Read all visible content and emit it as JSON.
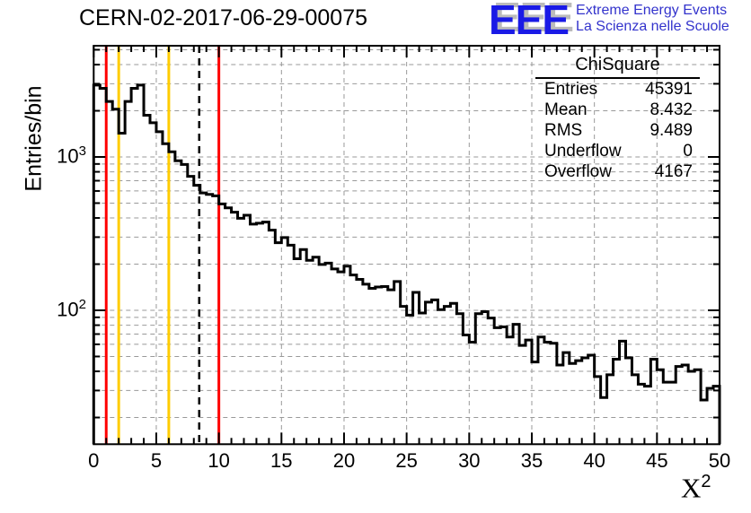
{
  "page": {
    "background": "#ffffff"
  },
  "header": {
    "title": "CERN-02-2017-06-29-00075",
    "logo": {
      "acronym": "EEE",
      "line1": "Extreme Energy Events",
      "line2": "La Scienza nelle Scuole",
      "acronym_color": "#1a1ae6",
      "shadow_color": "#bbbbbb",
      "text_color": "#3333cc"
    }
  },
  "axis": {
    "x_label_base": "X",
    "x_label_exp": "2",
    "y_label": "Entries/bin"
  },
  "stats_box": {
    "title": "ChiSquare",
    "rows": [
      {
        "label": "Entries",
        "value": "45391"
      },
      {
        "label": "Mean",
        "value": "8.432"
      },
      {
        "label": "RMS",
        "value": "9.489"
      },
      {
        "label": "Underflow",
        "value": "0"
      },
      {
        "label": "Overflow",
        "value": "4167"
      }
    ]
  },
  "chart_data": {
    "type": "bar",
    "subtype": "step-histogram-outline",
    "title": "CERN-02-2017-06-29-00075",
    "xlabel": "X^2",
    "ylabel": "Entries/bin",
    "log_y": true,
    "grid": true,
    "xlim": [
      0,
      50
    ],
    "ylim": [
      13.5,
      5310
    ],
    "bin_start": 0,
    "bin_width": 0.5,
    "counts": [
      2940,
      2800,
      2300,
      2050,
      1430,
      2300,
      2800,
      2940,
      1870,
      1670,
      1460,
      1220,
      1080,
      944,
      894,
      747,
      653,
      583,
      570,
      558,
      494,
      466,
      436,
      398,
      417,
      365,
      370,
      376,
      333,
      276,
      298,
      266,
      217,
      249,
      212,
      222,
      199,
      203,
      186,
      178,
      194,
      170,
      159,
      148,
      139,
      142,
      143,
      136,
      154,
      106,
      93,
      131,
      96,
      113,
      117,
      101,
      106,
      111,
      95,
      69,
      62,
      95,
      98,
      89,
      77,
      78,
      67,
      81,
      59,
      64,
      46,
      67,
      62,
      61,
      44,
      53,
      45,
      47,
      49,
      51,
      37,
      27,
      38,
      48,
      63,
      49,
      38,
      33,
      32,
      48,
      41,
      34,
      34,
      43,
      44,
      40,
      41,
      26,
      31,
      32
    ],
    "x_ticks": [
      0,
      5,
      10,
      15,
      20,
      25,
      30,
      35,
      40,
      45,
      50
    ],
    "x_minor_tick_step": 1,
    "y_tick_labels": [
      {
        "value": 100,
        "base": "10",
        "exp": "2"
      },
      {
        "value": 1000,
        "base": "10",
        "exp": "3"
      }
    ],
    "marker_lines": [
      {
        "x": 1,
        "color": "#ff0000",
        "style": "solid"
      },
      {
        "x": 2,
        "color": "#ffcc00",
        "style": "solid"
      },
      {
        "x": 6,
        "color": "#ffcc00",
        "style": "solid"
      },
      {
        "x": 8.43,
        "color": "#000000",
        "style": "dashed"
      },
      {
        "x": 10,
        "color": "#ff0000",
        "style": "solid"
      }
    ],
    "line_color": "#000000",
    "grid_color": "#999999",
    "frame_color": "#000000"
  }
}
